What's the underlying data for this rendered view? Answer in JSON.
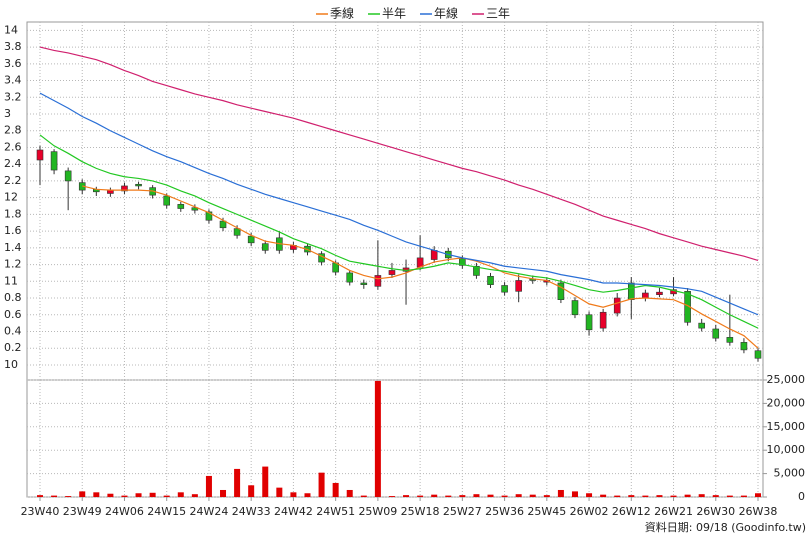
{
  "chart_data": {
    "type": "candlestick",
    "legend": "top",
    "categories": [
      "23W40",
      null,
      null,
      "23W49",
      null,
      null,
      "24W06",
      null,
      null,
      "24W15",
      null,
      null,
      "24W24",
      null,
      null,
      "24W33",
      null,
      null,
      "24W42",
      null,
      null,
      "24W51",
      null,
      null,
      "25W09",
      null,
      null,
      "25W18",
      null,
      null,
      "25W27",
      null,
      null,
      "25W36",
      null,
      null,
      "25W45",
      null,
      null,
      "26W02",
      null,
      null,
      "26W12",
      null,
      null,
      "26W21",
      null,
      null,
      "26W30",
      null,
      null,
      "26W38"
    ],
    "open": [
      12.45,
      12.55,
      12.32,
      12.18,
      12.1,
      12.05,
      12.08,
      12.16,
      12.12,
      12.02,
      11.92,
      11.88,
      11.83,
      11.72,
      11.63,
      11.54,
      11.45,
      11.52,
      11.38,
      11.42,
      11.33,
      11.22,
      11.1,
      10.98,
      10.94,
      11.08,
      11.12,
      11.17,
      11.26,
      11.36,
      11.27,
      11.18,
      11.06,
      10.95,
      10.88,
      11.03,
      10.99,
      10.98,
      10.77,
      10.6,
      10.44,
      10.62,
      10.98,
      10.8,
      10.84,
      10.85,
      10.88,
      10.5,
      10.43,
      10.33,
      10.27,
      10.17
    ],
    "high": [
      12.62,
      12.58,
      12.36,
      12.22,
      12.13,
      12.12,
      12.18,
      12.19,
      12.15,
      12.05,
      11.95,
      11.92,
      11.86,
      11.76,
      11.67,
      11.58,
      11.49,
      11.6,
      11.47,
      11.45,
      11.36,
      11.25,
      11.13,
      11.02,
      11.49,
      11.22,
      11.26,
      11.55,
      11.42,
      11.4,
      11.31,
      11.22,
      11.1,
      10.99,
      11.08,
      11.07,
      11.05,
      11.02,
      10.81,
      10.64,
      10.67,
      10.86,
      11.05,
      10.9,
      10.92,
      11.05,
      10.92,
      10.55,
      10.48,
      10.84,
      10.32,
      10.21
    ],
    "low": [
      12.15,
      12.28,
      11.85,
      12.04,
      12.02,
      12.01,
      12.04,
      12.1,
      11.99,
      11.87,
      11.83,
      11.81,
      11.69,
      11.6,
      11.51,
      11.42,
      11.33,
      11.33,
      11.34,
      11.31,
      11.19,
      11.07,
      10.95,
      10.91,
      10.9,
      11.04,
      10.72,
      11.13,
      11.22,
      11.24,
      11.15,
      11.03,
      10.92,
      10.83,
      10.75,
      10.97,
      10.95,
      10.74,
      10.56,
      10.35,
      10.4,
      10.58,
      10.55,
      10.76,
      10.81,
      10.82,
      10.47,
      10.4,
      10.28,
      10.23,
      10.14,
      10.04
    ],
    "close": [
      12.57,
      12.33,
      12.2,
      12.09,
      12.07,
      12.09,
      12.14,
      12.14,
      12.03,
      11.91,
      11.87,
      11.85,
      11.73,
      11.64,
      11.55,
      11.46,
      11.37,
      11.37,
      11.43,
      11.35,
      11.23,
      11.11,
      10.99,
      10.96,
      11.07,
      11.13,
      11.16,
      11.28,
      11.37,
      11.28,
      11.19,
      11.07,
      10.96,
      10.87,
      11.01,
      11.01,
      11.01,
      10.78,
      10.6,
      10.42,
      10.63,
      10.8,
      10.78,
      10.86,
      10.87,
      10.9,
      10.51,
      10.44,
      10.32,
      10.27,
      10.18,
      10.08
    ],
    "up_color": "#e8002a",
    "down_color": "#22b522",
    "series": [
      {
        "name": "季線",
        "color": "#f07a1a",
        "values": [
          null,
          null,
          null,
          12.14,
          12.1,
          12.09,
          12.09,
          12.09,
          12.08,
          12.03,
          11.96,
          11.89,
          11.82,
          11.73,
          11.64,
          11.55,
          11.48,
          11.45,
          11.43,
          11.38,
          11.3,
          11.22,
          11.13,
          11.07,
          11.03,
          11.05,
          11.1,
          11.17,
          11.23,
          11.26,
          11.28,
          11.24,
          11.18,
          11.1,
          11.06,
          11.03,
          11.01,
          10.93,
          10.83,
          10.73,
          10.69,
          10.74,
          10.79,
          10.8,
          10.79,
          10.78,
          10.71,
          10.61,
          10.52,
          10.43,
          10.35,
          10.2
        ]
      },
      {
        "name": "半年",
        "color": "#22c822",
        "values": [
          12.75,
          12.62,
          12.53,
          12.43,
          12.35,
          12.29,
          12.25,
          12.23,
          12.2,
          12.15,
          12.08,
          12.02,
          11.94,
          11.87,
          11.8,
          11.73,
          11.66,
          11.59,
          11.51,
          11.45,
          11.39,
          11.31,
          11.24,
          11.21,
          11.18,
          11.15,
          11.13,
          11.15,
          11.18,
          11.22,
          11.2,
          11.17,
          11.14,
          11.12,
          11.09,
          11.06,
          11.04,
          11.0,
          10.95,
          10.9,
          10.87,
          10.89,
          10.92,
          10.95,
          10.93,
          10.89,
          10.85,
          10.78,
          10.69,
          10.6,
          10.52,
          10.44
        ]
      },
      {
        "name": "年線",
        "color": "#2a6fd6",
        "values": [
          13.25,
          13.16,
          13.07,
          12.97,
          12.89,
          12.8,
          12.72,
          12.64,
          12.56,
          12.49,
          12.43,
          12.36,
          12.29,
          12.23,
          12.16,
          12.1,
          12.04,
          11.99,
          11.94,
          11.89,
          11.84,
          11.79,
          11.74,
          11.67,
          11.61,
          11.54,
          11.47,
          11.42,
          11.37,
          11.32,
          11.28,
          11.25,
          11.22,
          11.18,
          11.16,
          11.14,
          11.12,
          11.08,
          11.05,
          11.02,
          10.98,
          10.98,
          10.97,
          10.96,
          10.95,
          10.93,
          10.91,
          10.88,
          10.81,
          10.74,
          10.67,
          10.6
        ]
      },
      {
        "name": "三年",
        "color": "#d0206e",
        "values": [
          13.8,
          13.76,
          13.73,
          13.69,
          13.65,
          13.59,
          13.52,
          13.46,
          13.39,
          13.34,
          13.29,
          13.24,
          13.2,
          13.16,
          13.11,
          13.07,
          13.03,
          12.99,
          12.95,
          12.9,
          12.85,
          12.8,
          12.75,
          12.7,
          12.65,
          12.6,
          12.55,
          12.5,
          12.45,
          12.4,
          12.35,
          12.31,
          12.26,
          12.21,
          12.15,
          12.1,
          12.04,
          11.98,
          11.92,
          11.85,
          11.78,
          11.73,
          11.68,
          11.63,
          11.57,
          11.52,
          11.47,
          11.42,
          11.38,
          11.34,
          11.3,
          11.25
        ]
      }
    ],
    "ylim": [
      9.82,
      14.1
    ],
    "yticks": [
      14,
      {
        "value": 13.8,
        "label": "3.8"
      },
      {
        "value": 13.6,
        "label": "3.6"
      },
      {
        "value": 13.4,
        "label": "3.4"
      },
      {
        "value": 13.2,
        "label": "3.2"
      },
      {
        "value": 13,
        "label": "3"
      },
      {
        "value": 12.8,
        "label": "2.8"
      },
      {
        "value": 12.6,
        "label": "2.6"
      },
      {
        "value": 12.4,
        "label": "2.4"
      },
      {
        "value": 12.2,
        "label": "2.2"
      },
      12,
      {
        "value": 11.8,
        "label": "1.8"
      },
      {
        "value": 11.6,
        "label": "1.6"
      },
      {
        "value": 11.4,
        "label": "1.4"
      },
      {
        "value": 11.2,
        "label": "1.2"
      },
      11,
      {
        "value": 10.8,
        "label": "0.8"
      },
      {
        "value": 10.6,
        "label": "0.6"
      },
      {
        "value": 10.4,
        "label": "0.4"
      },
      {
        "value": 10.2,
        "label": "0.2"
      },
      10
    ],
    "grid": true,
    "volume": {
      "color": "#e00000",
      "values": [
        400,
        300,
        200,
        1200,
        1000,
        700,
        300,
        800,
        900,
        300,
        1000,
        600,
        4500,
        1500,
        6000,
        2500,
        6500,
        2000,
        1000,
        800,
        5200,
        3000,
        1500,
        300,
        24800,
        200,
        400,
        300,
        500,
        300,
        400,
        600,
        500,
        300,
        600,
        500,
        400,
        1500,
        1200,
        800,
        500,
        300,
        400,
        300,
        400,
        300,
        500,
        600,
        400,
        300,
        300,
        800
      ],
      "ylim": [
        0,
        25000
      ],
      "yticks": [
        {
          "value": 25000,
          "label": "25,000"
        },
        {
          "value": 20000,
          "label": "20,000"
        },
        {
          "value": 15000,
          "label": "15,000"
        },
        {
          "value": 10000,
          "label": "10,000"
        },
        {
          "value": 5000,
          "label": "5,000"
        },
        0
      ]
    },
    "footnote": "資料日期: 09/18 (Goodinfo.tw)"
  }
}
